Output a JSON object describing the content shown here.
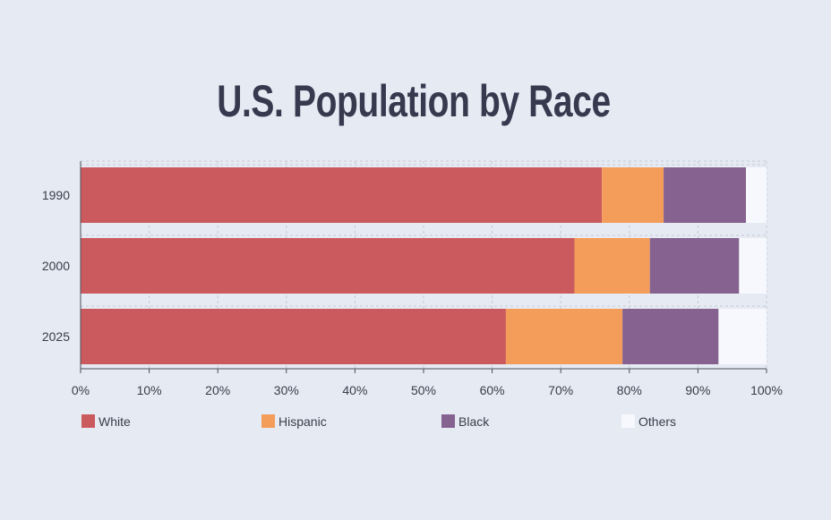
{
  "chart_data": {
    "type": "bar",
    "orientation": "horizontal",
    "stacked": true,
    "title": "U.S. Population by Race",
    "categories": [
      "1990",
      "2000",
      "2025"
    ],
    "series": [
      {
        "name": "White",
        "color": "#cb5a5e",
        "values": [
          76,
          72,
          62
        ]
      },
      {
        "name": "Hispanic",
        "color": "#f49c59",
        "values": [
          9,
          11,
          17
        ]
      },
      {
        "name": "Black",
        "color": "#85628f",
        "values": [
          12,
          13,
          14
        ]
      },
      {
        "name": "Others",
        "color": "#f6f8fd",
        "values": [
          3,
          4,
          7
        ]
      }
    ],
    "xlim": [
      0,
      100
    ],
    "xticks": [
      "0%",
      "10%",
      "20%",
      "30%",
      "40%",
      "50%",
      "60%",
      "70%",
      "80%",
      "90%",
      "100%"
    ],
    "grid": true,
    "legend_position": "bottom"
  }
}
